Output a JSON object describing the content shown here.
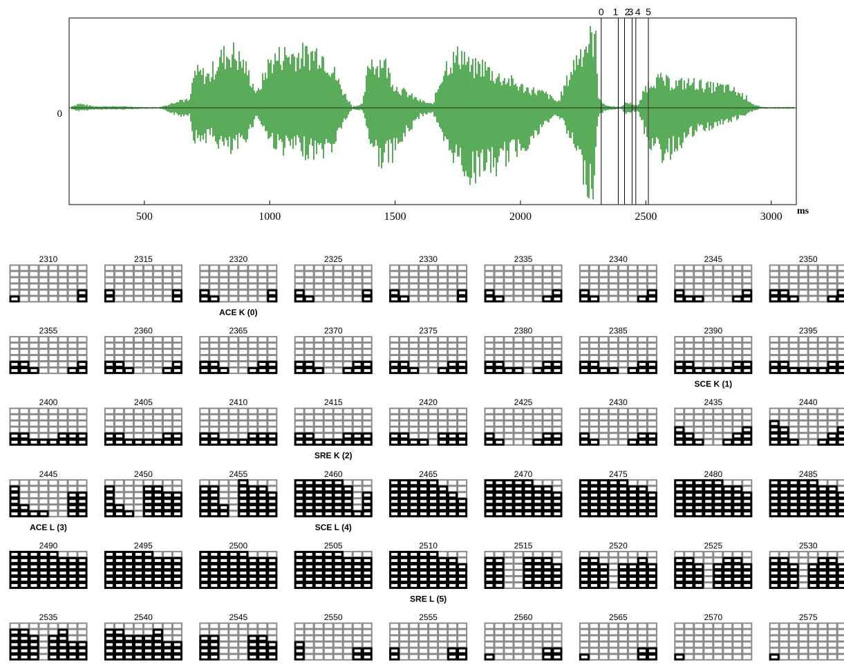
{
  "chart_data": [
    {
      "type": "line",
      "subtype": "waveform",
      "xlabel": "ms",
      "x_ticks": [
        500,
        1000,
        1500,
        2000,
        2500,
        3000
      ],
      "xlim": [
        200,
        3100
      ],
      "y_ticks": [
        0
      ],
      "y_tick_labels": [
        "0"
      ],
      "color": "#008000",
      "envelope": {
        "x": [
          200,
          240,
          300,
          400,
          500,
          560,
          600,
          640,
          680,
          700,
          730,
          760,
          800,
          850,
          900,
          950,
          1000,
          1050,
          1100,
          1150,
          1200,
          1250,
          1290,
          1330,
          1370,
          1400,
          1430,
          1450,
          1500,
          1550,
          1600,
          1650,
          1700,
          1740,
          1770,
          1800,
          1850,
          1900,
          1950,
          2000,
          2050,
          2100,
          2150,
          2200,
          2230,
          2260,
          2290,
          2300,
          2310,
          2330,
          2360,
          2380,
          2400,
          2420,
          2450,
          2470,
          2500,
          2530,
          2560,
          2600,
          2650,
          2700,
          2750,
          2800,
          2850,
          2900,
          2930,
          2960,
          3000,
          3050,
          3100
        ],
        "upper": [
          0.01,
          0.06,
          0.02,
          0.02,
          0.01,
          0.01,
          0.05,
          0.12,
          0.1,
          0.5,
          0.48,
          0.45,
          0.7,
          0.8,
          0.6,
          0.2,
          0.65,
          0.75,
          0.75,
          0.75,
          0.8,
          0.55,
          0.25,
          0.02,
          0.05,
          0.7,
          0.6,
          0.7,
          0.3,
          0.2,
          0.1,
          0.05,
          0.6,
          0.7,
          0.78,
          0.55,
          0.6,
          0.45,
          0.4,
          0.3,
          0.25,
          0.2,
          0.08,
          0.5,
          0.75,
          0.9,
          1.0,
          0.95,
          0.2,
          0.05,
          0.02,
          0.02,
          0.01,
          0.08,
          0.05,
          0.03,
          0.3,
          0.4,
          0.4,
          0.35,
          0.35,
          0.35,
          0.3,
          0.3,
          0.25,
          0.15,
          0.05,
          0.01,
          0.01,
          0.01,
          0.01
        ],
        "lower": [
          -0.01,
          -0.04,
          -0.02,
          -0.02,
          -0.01,
          -0.01,
          -0.05,
          -0.1,
          -0.08,
          -0.4,
          -0.38,
          -0.35,
          -0.45,
          -0.55,
          -0.4,
          -0.1,
          -0.4,
          -0.5,
          -0.5,
          -0.55,
          -0.55,
          -0.5,
          -0.2,
          -0.02,
          -0.03,
          -0.4,
          -0.6,
          -0.65,
          -0.55,
          -0.3,
          -0.1,
          -0.05,
          -0.5,
          -0.6,
          -0.72,
          -0.85,
          -0.7,
          -0.75,
          -0.6,
          -0.5,
          -0.4,
          -0.2,
          -0.08,
          -0.4,
          -0.6,
          -0.9,
          -1.0,
          -0.6,
          -0.1,
          -0.05,
          -0.02,
          -0.02,
          -0.01,
          -0.07,
          -0.05,
          -0.03,
          -0.35,
          -0.5,
          -0.6,
          -0.55,
          -0.4,
          -0.3,
          -0.25,
          -0.2,
          -0.15,
          -0.1,
          -0.03,
          -0.01,
          -0.01,
          -0.01,
          -0.01
        ]
      },
      "markers": [
        {
          "label": "0",
          "x": 2322
        },
        {
          "label": "1",
          "x": 2390
        },
        {
          "label": "2",
          "x": 2415
        },
        {
          "label": "3",
          "x": 2445
        },
        {
          "label": "4",
          "x": 2460
        },
        {
          "label": "5",
          "x": 2510
        }
      ]
    },
    {
      "type": "heatmap",
      "subtype": "frame-grid",
      "rows": 6,
      "cols": 8,
      "frames": [
        {
          "label": "2310",
          "heights": [
            1,
            0,
            0,
            0,
            0,
            0,
            0,
            2
          ]
        },
        {
          "label": "2315",
          "heights": [
            2,
            0,
            0,
            0,
            0,
            0,
            0,
            2
          ]
        },
        {
          "label": "2320",
          "heights": [
            2,
            1,
            0,
            0,
            0,
            0,
            0,
            2
          ],
          "event": "ACE K (0)"
        },
        {
          "label": "2325",
          "heights": [
            2,
            1,
            0,
            0,
            0,
            0,
            0,
            2
          ]
        },
        {
          "label": "2330",
          "heights": [
            2,
            1,
            0,
            0,
            0,
            0,
            0,
            2
          ]
        },
        {
          "label": "2335",
          "heights": [
            2,
            1,
            0,
            0,
            0,
            0,
            1,
            2
          ]
        },
        {
          "label": "2340",
          "heights": [
            2,
            1,
            0,
            0,
            0,
            0,
            1,
            2
          ]
        },
        {
          "label": "2345",
          "heights": [
            2,
            1,
            1,
            0,
            0,
            0,
            1,
            2
          ]
        },
        {
          "label": "2350",
          "heights": [
            2,
            2,
            1,
            0,
            0,
            0,
            1,
            2
          ]
        },
        {
          "label": "2355",
          "heights": [
            2,
            2,
            1,
            0,
            0,
            0,
            1,
            2
          ]
        },
        {
          "label": "2360",
          "heights": [
            2,
            2,
            1,
            0,
            0,
            0,
            1,
            2
          ]
        },
        {
          "label": "2365",
          "heights": [
            2,
            2,
            1,
            0,
            0,
            1,
            2,
            2
          ]
        },
        {
          "label": "2370",
          "heights": [
            2,
            2,
            1,
            0,
            0,
            1,
            2,
            2
          ]
        },
        {
          "label": "2375",
          "heights": [
            2,
            2,
            1,
            0,
            0,
            1,
            2,
            2
          ]
        },
        {
          "label": "2380",
          "heights": [
            2,
            2,
            1,
            1,
            0,
            1,
            2,
            2
          ]
        },
        {
          "label": "2385",
          "heights": [
            2,
            2,
            1,
            1,
            0,
            1,
            2,
            2
          ]
        },
        {
          "label": "2390",
          "heights": [
            2,
            2,
            1,
            1,
            1,
            1,
            2,
            2
          ],
          "event": "SCE K (1)"
        },
        {
          "label": "2395",
          "heights": [
            2,
            2,
            1,
            1,
            1,
            1,
            2,
            2
          ]
        },
        {
          "label": "2400",
          "heights": [
            2,
            2,
            1,
            1,
            1,
            2,
            2,
            2
          ]
        },
        {
          "label": "2405",
          "heights": [
            2,
            2,
            1,
            1,
            1,
            1,
            2,
            2
          ]
        },
        {
          "label": "2410",
          "heights": [
            2,
            2,
            1,
            1,
            1,
            2,
            2,
            2
          ]
        },
        {
          "label": "2415",
          "heights": [
            2,
            2,
            1,
            1,
            1,
            2,
            2,
            2
          ],
          "event": "SRE K (2)"
        },
        {
          "label": "2420",
          "heights": [
            2,
            2,
            1,
            1,
            0,
            2,
            2,
            2
          ]
        },
        {
          "label": "2425",
          "heights": [
            2,
            1,
            0,
            0,
            0,
            1,
            2,
            2
          ]
        },
        {
          "label": "2430",
          "heights": [
            2,
            1,
            0,
            0,
            0,
            1,
            2,
            2
          ]
        },
        {
          "label": "2435",
          "heights": [
            3,
            2,
            1,
            0,
            0,
            1,
            2,
            3
          ]
        },
        {
          "label": "2440",
          "heights": [
            4,
            3,
            1,
            0,
            0,
            1,
            2,
            3
          ]
        },
        {
          "label": "2445",
          "heights": [
            5,
            2,
            1,
            1,
            0,
            0,
            4,
            4
          ],
          "event": "ACE L (3)"
        },
        {
          "label": "2450",
          "heights": [
            5,
            2,
            1,
            0,
            5,
            5,
            4,
            4
          ]
        },
        {
          "label": "2455",
          "heights": [
            5,
            5,
            2,
            0,
            6,
            5,
            5,
            4
          ]
        },
        {
          "label": "2460",
          "heights": [
            6,
            6,
            6,
            6,
            6,
            5,
            1,
            4
          ],
          "event": "SCE L (4)"
        },
        {
          "label": "2465",
          "heights": [
            6,
            6,
            6,
            6,
            6,
            5,
            4,
            3
          ]
        },
        {
          "label": "2470",
          "heights": [
            6,
            6,
            6,
            6,
            6,
            5,
            5,
            4
          ]
        },
        {
          "label": "2475",
          "heights": [
            6,
            6,
            6,
            6,
            6,
            5,
            5,
            4
          ]
        },
        {
          "label": "2480",
          "heights": [
            6,
            6,
            6,
            6,
            6,
            5,
            5,
            4
          ]
        },
        {
          "label": "2485",
          "heights": [
            6,
            6,
            6,
            6,
            6,
            5,
            5,
            4
          ]
        },
        {
          "label": "2490",
          "heights": [
            6,
            6,
            6,
            6,
            6,
            5,
            5,
            5
          ]
        },
        {
          "label": "2495",
          "heights": [
            6,
            6,
            6,
            6,
            6,
            5,
            5,
            5
          ]
        },
        {
          "label": "2500",
          "heights": [
            6,
            6,
            6,
            6,
            6,
            5,
            5,
            5
          ]
        },
        {
          "label": "2505",
          "heights": [
            6,
            6,
            6,
            6,
            6,
            5,
            5,
            5
          ]
        },
        {
          "label": "2510",
          "heights": [
            6,
            6,
            6,
            6,
            6,
            5,
            5,
            4
          ],
          "event": "SRE L (5)"
        },
        {
          "label": "2515",
          "heights": [
            5,
            5,
            0,
            0,
            5,
            5,
            5,
            4
          ]
        },
        {
          "label": "2520",
          "heights": [
            5,
            5,
            4,
            0,
            4,
            4,
            5,
            4
          ]
        },
        {
          "label": "2525",
          "heights": [
            5,
            5,
            4,
            0,
            4,
            5,
            5,
            4
          ]
        },
        {
          "label": "2530",
          "heights": [
            5,
            5,
            4,
            0,
            4,
            5,
            5,
            4
          ]
        },
        {
          "label": "2535",
          "heights": [
            5,
            5,
            4,
            0,
            4,
            5,
            3,
            3
          ]
        },
        {
          "label": "2540",
          "heights": [
            5,
            5,
            4,
            4,
            4,
            5,
            3,
            3
          ]
        },
        {
          "label": "2545",
          "heights": [
            4,
            4,
            0,
            0,
            0,
            4,
            4,
            3
          ]
        },
        {
          "label": "2550",
          "heights": [
            3,
            0,
            0,
            0,
            0,
            0,
            2,
            2
          ]
        },
        {
          "label": "2555",
          "heights": [
            2,
            0,
            0,
            0,
            0,
            0,
            2,
            2
          ]
        },
        {
          "label": "2560",
          "heights": [
            1,
            0,
            0,
            0,
            0,
            0,
            2,
            2
          ]
        },
        {
          "label": "2565",
          "heights": [
            1,
            0,
            0,
            0,
            0,
            0,
            2,
            2
          ]
        },
        {
          "label": "2570",
          "heights": [
            1,
            0,
            0,
            0,
            0,
            0,
            0,
            0
          ]
        },
        {
          "label": "2575",
          "heights": [
            1,
            0,
            0,
            0,
            0,
            0,
            0,
            0
          ]
        }
      ]
    }
  ]
}
